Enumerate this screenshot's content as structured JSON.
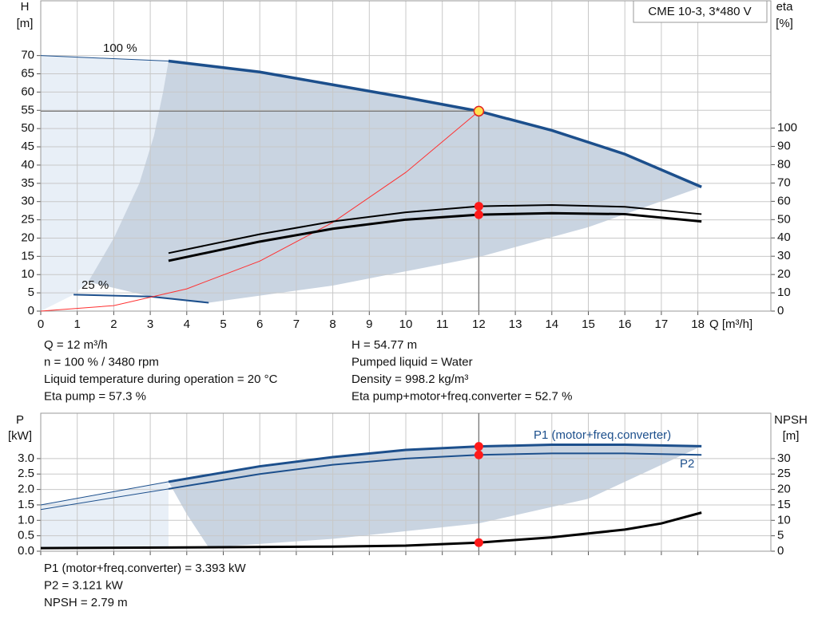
{
  "chart_data": [
    {
      "type": "line",
      "title": "CME 10-3, 3*480 V",
      "ylabel": [
        "H",
        "[m]"
      ],
      "y2label": [
        "eta",
        "[%]"
      ],
      "xlabel": "Q [m³/h]",
      "annotations": [
        "100 %",
        "25 %"
      ],
      "xlim": [
        0,
        20
      ],
      "ylim": [
        0,
        85
      ],
      "y2lim": [
        0,
        169.6
      ],
      "xticks": [
        0,
        1,
        2,
        3,
        4,
        5,
        6,
        7,
        8,
        9,
        10,
        11,
        12,
        13,
        14,
        15,
        16,
        17,
        18
      ],
      "yticks": [
        0,
        5,
        10,
        15,
        20,
        25,
        30,
        35,
        40,
        45,
        50,
        55,
        60,
        65,
        70
      ],
      "y2ticks": [
        0,
        10,
        20,
        30,
        40,
        50,
        60,
        70,
        80,
        90,
        100
      ],
      "xtick_labels": true,
      "grid": true,
      "areas": [
        {
          "color": "#e8eff7",
          "x": [
            0,
            3.5,
            3.35,
            3.1,
            2.7,
            2,
            1.3,
            0.9,
            0
          ],
          "values": [
            70,
            68.5,
            60,
            48,
            35,
            20,
            8,
            4.5,
            0
          ]
        },
        {
          "color": "#c9d4e1",
          "x": [
            3.5,
            6,
            8,
            10,
            12,
            14,
            16,
            18.1,
            15,
            12,
            8,
            4.6,
            3,
            1.3,
            2,
            2.7,
            3.1,
            3.35
          ],
          "values": [
            68.5,
            65.5,
            62,
            58.5,
            54.77,
            49.5,
            43,
            34,
            23,
            14.8,
            7,
            2.3,
            4,
            8,
            20,
            35,
            48,
            60
          ]
        }
      ],
      "series": [
        {
          "color": "#1c4f8c",
          "width": 1,
          "x": [
            0,
            3.5
          ],
          "values": [
            70,
            68.5
          ]
        },
        {
          "color": "#1c4f8c",
          "width": 3.5,
          "x": [
            3.5,
            6,
            8,
            10,
            12,
            14,
            16,
            18.1
          ],
          "values": [
            68.5,
            65.5,
            62,
            58.5,
            54.77,
            49.5,
            43,
            34
          ],
          "marker": {
            "x": 12,
            "value": 54.77,
            "color": "#ffe14d"
          }
        },
        {
          "color": "#1c4f8c",
          "width": 2,
          "x": [
            0.9,
            3,
            4.6
          ],
          "values": [
            4.5,
            4,
            2.3
          ]
        },
        {
          "color": "#ff3030",
          "width": 1,
          "x": [
            0,
            2,
            4,
            6,
            8,
            10,
            12
          ],
          "values": [
            0,
            1.5,
            6.1,
            13.7,
            24.3,
            38,
            54.77
          ]
        },
        {
          "color": "#000000",
          "width": 2,
          "axis": "y2",
          "x": [
            3.5,
            6,
            8,
            10,
            12,
            14,
            16,
            18.1
          ],
          "values": [
            31.7,
            42,
            49,
            54,
            57.3,
            58,
            57,
            53
          ],
          "marker": {
            "x": 12,
            "value": 57.3,
            "color": "#ff1a1a"
          }
        },
        {
          "color": "#000000",
          "width": 3,
          "axis": "y2",
          "x": [
            3.5,
            6,
            8,
            10,
            12,
            14,
            16,
            18.1
          ],
          "values": [
            27.5,
            38,
            45,
            50,
            52.7,
            53.5,
            53,
            49
          ],
          "marker": {
            "x": 12,
            "value": 52.7,
            "color": "#ff1a1a"
          }
        }
      ],
      "info": [
        [
          "Q = 12 m³/h",
          "n = 100 % / 3480 rpm",
          "Liquid temperature during operation = 20 °C",
          "Eta pump = 57.3 %"
        ],
        [
          "H = 54.77 m",
          "Pumped liquid = Water",
          "Density = 998.2 kg/m³",
          "Eta pump+motor+freq.converter = 52.7 %"
        ]
      ]
    },
    {
      "type": "line",
      "ylabel": [
        "P",
        "[kW]"
      ],
      "y2label": [
        "NPSH",
        "[m]"
      ],
      "annotations": [
        "P1 (motor+freq.converter)",
        "P2"
      ],
      "xlim": [
        0,
        20
      ],
      "ylim": [
        0,
        4.47
      ],
      "y2lim": [
        0,
        44.7
      ],
      "xticks": [
        0,
        1,
        2,
        3,
        4,
        5,
        6,
        7,
        8,
        9,
        10,
        11,
        12,
        13,
        14,
        15,
        16,
        17,
        18
      ],
      "yticks": [
        {
          "value": 0,
          "label": "0.0"
        },
        0.5,
        {
          "value": 1,
          "label": "1.0"
        },
        1.5,
        {
          "value": 2,
          "label": "2.0"
        },
        2.5,
        {
          "value": 3,
          "label": "3.0"
        }
      ],
      "y2ticks": [
        0,
        5,
        10,
        15,
        20,
        25,
        30
      ],
      "xtick_labels": false,
      "grid": true,
      "areas": [
        {
          "color": "#e8eff7",
          "x": [
            0,
            3.5,
            3.5,
            0
          ],
          "values": [
            1.5,
            2.25,
            0.1,
            0.1
          ]
        },
        {
          "color": "#c9d4e1",
          "x": [
            3.5,
            6,
            8,
            10,
            12,
            14,
            16,
            18.1,
            15,
            12,
            8,
            4.6,
            4.0
          ],
          "values": [
            2.25,
            2.75,
            3.05,
            3.28,
            3.393,
            3.45,
            3.45,
            3.4,
            1.7,
            0.9,
            0.4,
            0.12,
            1.2
          ]
        }
      ],
      "series": [
        {
          "color": "#1c4f8c",
          "width": 1,
          "x": [
            0,
            3.5
          ],
          "values": [
            1.5,
            2.25
          ]
        },
        {
          "color": "#1c4f8c",
          "width": 3,
          "x": [
            3.5,
            6,
            8,
            10,
            12,
            14,
            16,
            18.1
          ],
          "values": [
            2.25,
            2.75,
            3.05,
            3.28,
            3.393,
            3.45,
            3.45,
            3.4
          ],
          "marker": {
            "x": 12,
            "value": 3.393,
            "color": "#ff1a1a"
          }
        },
        {
          "color": "#1c4f8c",
          "width": 1,
          "x": [
            0,
            3.5
          ],
          "values": [
            1.35,
            2.02
          ]
        },
        {
          "color": "#1c4f8c",
          "width": 2,
          "x": [
            3.5,
            6,
            8,
            10,
            12,
            14,
            16,
            18.1
          ],
          "values": [
            2.02,
            2.5,
            2.8,
            3.0,
            3.121,
            3.17,
            3.17,
            3.12
          ],
          "marker": {
            "x": 12,
            "value": 3.121,
            "color": "#ff1a1a"
          }
        },
        {
          "color": "#000000",
          "width": 3,
          "axis": "y2",
          "x": [
            0,
            3.5,
            8,
            10,
            12,
            14,
            16,
            17,
            18.1
          ],
          "values": [
            1,
            1.2,
            1.5,
            1.8,
            2.79,
            4.5,
            7,
            9,
            12.5
          ],
          "marker": {
            "x": 12,
            "value": 2.79,
            "color": "#ff1a1a"
          }
        }
      ],
      "info": [
        [
          "P1 (motor+freq.converter) = 3.393 kW",
          "P2 = 3.121 kW",
          "NPSH = 2.79 m"
        ]
      ]
    }
  ]
}
